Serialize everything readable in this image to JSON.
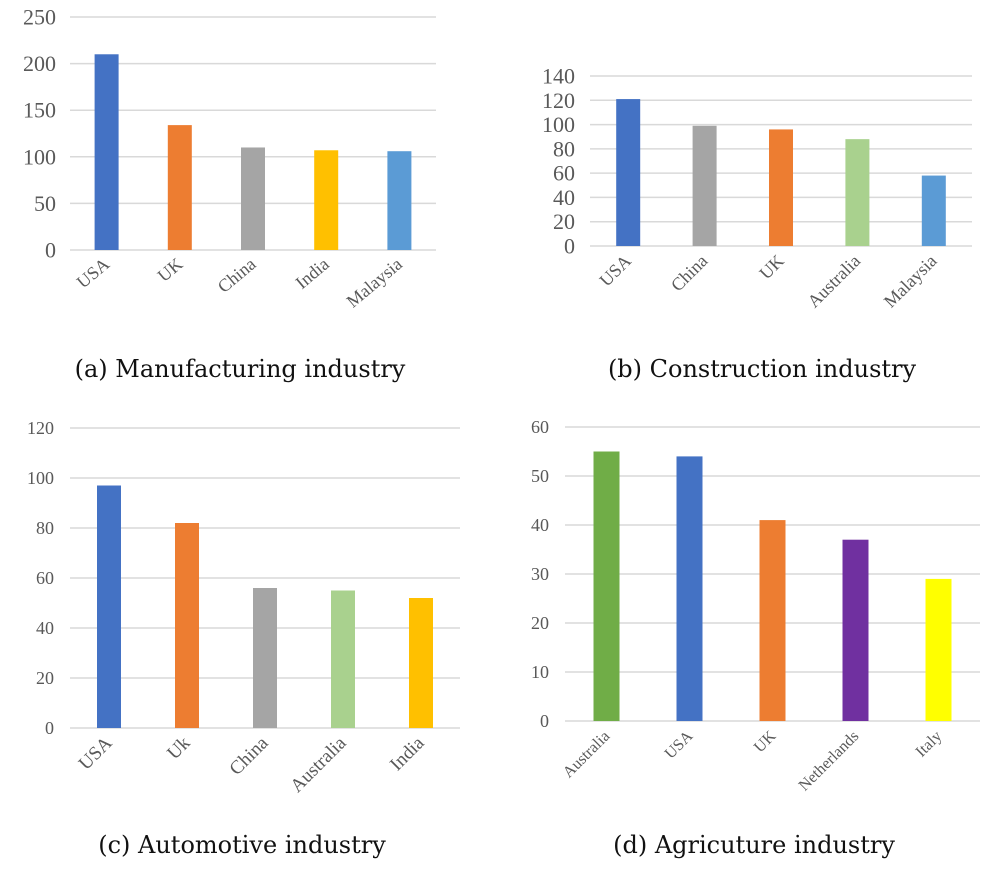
{
  "chart_data": [
    {
      "type": "bar",
      "caption": "(a)  Manufacturing industry",
      "categories": [
        "USA",
        "UK",
        "China",
        "India",
        "Malaysia"
      ],
      "values": [
        210,
        134,
        110,
        107,
        106
      ],
      "colors": [
        "#4472C4",
        "#ED7D31",
        "#A5A5A5",
        "#FFC000",
        "#5B9BD5"
      ],
      "yticks": [
        0,
        50,
        100,
        150,
        200,
        250
      ],
      "ylim": [
        0,
        250
      ],
      "grid": true
    },
    {
      "type": "bar",
      "caption": "(b)  Construction industry",
      "categories": [
        "USA",
        "China",
        "UK",
        "Australia",
        "Malaysia"
      ],
      "values": [
        121,
        99,
        96,
        88,
        58
      ],
      "colors": [
        "#4472C4",
        "#A5A5A5",
        "#ED7D31",
        "#A9D18E",
        "#5B9BD5"
      ],
      "yticks": [
        0,
        20,
        40,
        60,
        80,
        100,
        120,
        140
      ],
      "ylim": [
        0,
        140
      ],
      "grid": true
    },
    {
      "type": "bar",
      "caption": "(c)  Automotive industry",
      "categories": [
        "USA",
        "Uk",
        "China",
        "Australia",
        "India"
      ],
      "values": [
        97,
        82,
        56,
        55,
        52
      ],
      "colors": [
        "#4472C4",
        "#ED7D31",
        "#A5A5A5",
        "#A9D18E",
        "#FFC000"
      ],
      "yticks": [
        0,
        20,
        40,
        60,
        80,
        100,
        120
      ],
      "ylim": [
        0,
        120
      ],
      "grid": true
    },
    {
      "type": "bar",
      "caption": "(d)  Agricuture industry",
      "categories": [
        "Australia",
        "USA",
        "UK",
        "Netherlands",
        "Italy"
      ],
      "values": [
        55,
        54,
        41,
        37,
        29
      ],
      "colors": [
        "#70AD47",
        "#4472C4",
        "#ED7D31",
        "#7030A0",
        "#FFFF00"
      ],
      "yticks": [
        0,
        10,
        20,
        30,
        40,
        50,
        60
      ],
      "ylim": [
        0,
        60
      ],
      "grid": true
    }
  ]
}
